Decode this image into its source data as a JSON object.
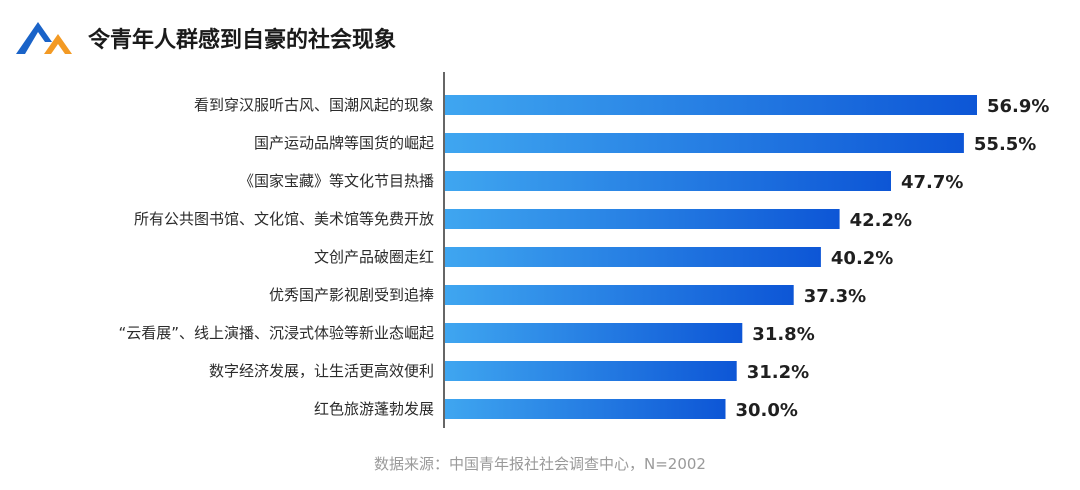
{
  "header": {
    "title": "令青年人群感到自豪的社会现象"
  },
  "colors": {
    "bar_start": "#3fa6f0",
    "bar_end": "#0d56d6",
    "logo_blue": "#1a63c8",
    "logo_orange": "#f39a24"
  },
  "chart_data": {
    "type": "bar",
    "orientation": "horizontal",
    "title": "令青年人群感到自豪的社会现象",
    "categories": [
      "看到穿汉服听古风、国潮风起的现象",
      "国产运动品牌等国货的崛起",
      "《国家宝藏》等文化节目热播",
      "所有公共图书馆、文化馆、美术馆等免费开放",
      "文创产品破圈走红",
      "优秀国产影视剧受到追捧",
      "“云看展”、线上演播、沉浸式体验等新业态崛起",
      "数字经济发展，让生活更高效便利",
      "红色旅游蓬勃发展"
    ],
    "values": [
      56.9,
      55.5,
      47.7,
      42.2,
      40.2,
      37.3,
      31.8,
      31.2,
      30.0
    ],
    "value_labels": [
      "56.9%",
      "55.5%",
      "47.7%",
      "42.2%",
      "40.2%",
      "37.3%",
      "31.8%",
      "31.2%",
      "30.0%"
    ],
    "unit": "%",
    "xlim": [
      0,
      56.9
    ],
    "grid": false,
    "legend": "none"
  },
  "footer": {
    "source": "数据来源：中国青年报社社会调查中心，N=2002"
  }
}
